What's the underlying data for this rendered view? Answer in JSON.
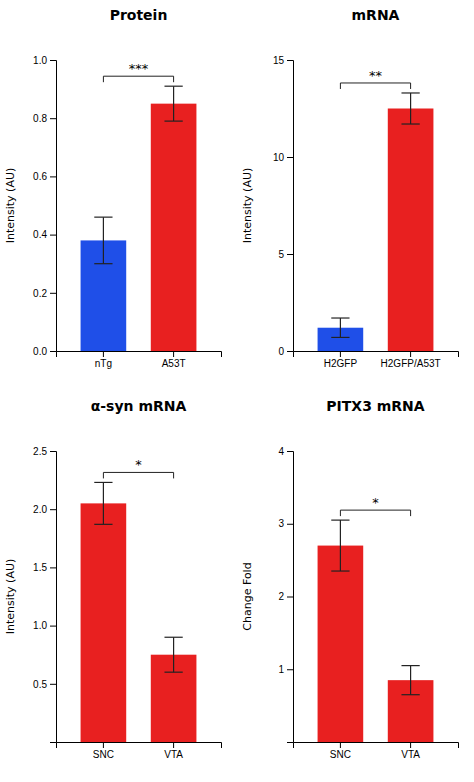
{
  "chart_data": [
    {
      "type": "bar",
      "title": "Protein",
      "ylabel": "Intensity (AU)",
      "categories": [
        "nTg",
        "A53T"
      ],
      "values": [
        0.38,
        0.85
      ],
      "errors": [
        0.08,
        0.06
      ],
      "colors": [
        "#1f4fe8",
        "#e82020"
      ],
      "ylim": [
        0,
        1.0
      ],
      "yticks": [
        {
          "value": 0,
          "label": "0.0"
        },
        0.2,
        0.4,
        0.6,
        0.8,
        {
          "value": 1,
          "label": "1.0"
        }
      ],
      "annotations": [
        "***"
      ]
    },
    {
      "type": "bar",
      "title": "mRNA",
      "ylabel": "Intensity (AU)",
      "categories": [
        "H2GFP",
        "H2GFP/A53T"
      ],
      "values": [
        1.2,
        12.5
      ],
      "errors": [
        0.5,
        0.8
      ],
      "colors": [
        "#1f4fe8",
        "#e82020"
      ],
      "ylim": [
        0,
        15.0
      ],
      "yticks": [
        0,
        5,
        10,
        15
      ],
      "annotations": [
        "**"
      ]
    },
    {
      "type": "bar",
      "title": "α-syn mRNA",
      "ylabel": "Intensity (AU)",
      "categories": [
        "SNC",
        "VTA"
      ],
      "values": [
        2.05,
        0.75
      ],
      "errors": [
        0.18,
        0.15
      ],
      "colors": [
        "#e82020",
        "#e82020"
      ],
      "ylim": [
        0,
        2.5
      ],
      "yticks": [
        0.5,
        {
          "value": 1,
          "label": "1.0"
        },
        1.5,
        {
          "value": 2,
          "label": "2.0"
        },
        2.5
      ],
      "annotations": [
        "*"
      ]
    },
    {
      "type": "bar",
      "title": "PITX3 mRNA",
      "ylabel": "Change Fold",
      "categories": [
        "SNC",
        "VTA"
      ],
      "values": [
        2.7,
        0.85
      ],
      "errors": [
        0.35,
        0.2
      ],
      "colors": [
        "#e82020",
        "#e82020"
      ],
      "ylim": [
        0,
        4.0
      ],
      "yticks": [
        1,
        2,
        3,
        4
      ],
      "annotations": [
        "*"
      ]
    }
  ]
}
